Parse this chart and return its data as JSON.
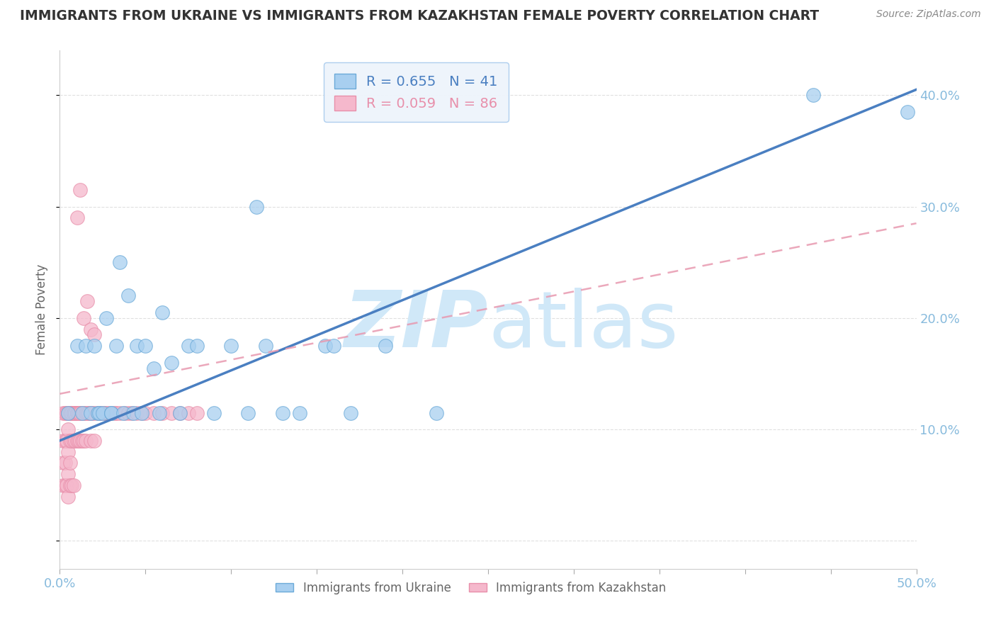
{
  "title": "IMMIGRANTS FROM UKRAINE VS IMMIGRANTS FROM KAZAKHSTAN FEMALE POVERTY CORRELATION CHART",
  "source": "Source: ZipAtlas.com",
  "ylabel": "Female Poverty",
  "yticks": [
    0.0,
    0.1,
    0.2,
    0.3,
    0.4
  ],
  "ytick_labels": [
    "",
    "10.0%",
    "20.0%",
    "30.0%",
    "40.0%"
  ],
  "xlim": [
    0.0,
    0.5
  ],
  "ylim": [
    -0.025,
    0.44
  ],
  "ukraine_R": 0.655,
  "ukraine_N": 41,
  "kazakhstan_R": 0.059,
  "kazakhstan_N": 86,
  "ukraine_color": "#A8CFF0",
  "ukraine_edge_color": "#6BAAD8",
  "kazakhstan_color": "#F5B8CC",
  "kazakhstan_edge_color": "#E88FAA",
  "ukraine_line_color": "#4A7FC1",
  "kazakhstan_line_color": "#E899B0",
  "grid_color": "#DDDDDD",
  "axis_color": "#88BBDD",
  "watermark_color": "#D0E8F8",
  "legend_box_color": "#EEF4FB",
  "ukraine_trend_x0": 0.0,
  "ukraine_trend_y0": 0.09,
  "ukraine_trend_x1": 0.5,
  "ukraine_trend_y1": 0.405,
  "kaz_trend_x0": 0.0,
  "kaz_trend_y0": 0.132,
  "kaz_trend_x1": 0.5,
  "kaz_trend_y1": 0.285,
  "ukraine_scatter_x": [
    0.005,
    0.01,
    0.013,
    0.015,
    0.018,
    0.02,
    0.022,
    0.023,
    0.025,
    0.027,
    0.03,
    0.03,
    0.033,
    0.035,
    0.037,
    0.04,
    0.043,
    0.045,
    0.048,
    0.05,
    0.055,
    0.058,
    0.06,
    0.065,
    0.07,
    0.075,
    0.08,
    0.09,
    0.1,
    0.11,
    0.115,
    0.12,
    0.13,
    0.14,
    0.155,
    0.16,
    0.17,
    0.19,
    0.22,
    0.44,
    0.495
  ],
  "ukraine_scatter_y": [
    0.115,
    0.175,
    0.115,
    0.175,
    0.115,
    0.175,
    0.115,
    0.115,
    0.115,
    0.2,
    0.115,
    0.115,
    0.175,
    0.25,
    0.115,
    0.22,
    0.115,
    0.175,
    0.115,
    0.175,
    0.155,
    0.115,
    0.205,
    0.16,
    0.115,
    0.175,
    0.175,
    0.115,
    0.175,
    0.115,
    0.3,
    0.175,
    0.115,
    0.115,
    0.175,
    0.175,
    0.115,
    0.175,
    0.115,
    0.4,
    0.385
  ],
  "kazakhstan_scatter_x": [
    0.002,
    0.002,
    0.002,
    0.002,
    0.003,
    0.003,
    0.003,
    0.003,
    0.004,
    0.004,
    0.004,
    0.005,
    0.005,
    0.005,
    0.005,
    0.005,
    0.005,
    0.005,
    0.006,
    0.006,
    0.006,
    0.006,
    0.006,
    0.007,
    0.007,
    0.007,
    0.007,
    0.008,
    0.008,
    0.008,
    0.008,
    0.008,
    0.009,
    0.009,
    0.009,
    0.01,
    0.01,
    0.01,
    0.01,
    0.011,
    0.011,
    0.011,
    0.012,
    0.012,
    0.013,
    0.013,
    0.014,
    0.014,
    0.015,
    0.015,
    0.016,
    0.017,
    0.018,
    0.018,
    0.019,
    0.02,
    0.02,
    0.022,
    0.023,
    0.024,
    0.025,
    0.026,
    0.027,
    0.028,
    0.03,
    0.032,
    0.033,
    0.035,
    0.038,
    0.04,
    0.042,
    0.045,
    0.048,
    0.05,
    0.055,
    0.06,
    0.065,
    0.07,
    0.075,
    0.08,
    0.01,
    0.012,
    0.014,
    0.016,
    0.018,
    0.02
  ],
  "kazakhstan_scatter_y": [
    0.115,
    0.09,
    0.07,
    0.05,
    0.115,
    0.09,
    0.07,
    0.05,
    0.115,
    0.09,
    0.05,
    0.115,
    0.115,
    0.115,
    0.1,
    0.08,
    0.06,
    0.04,
    0.115,
    0.115,
    0.09,
    0.07,
    0.05,
    0.115,
    0.115,
    0.09,
    0.05,
    0.115,
    0.115,
    0.115,
    0.09,
    0.05,
    0.115,
    0.115,
    0.09,
    0.115,
    0.115,
    0.115,
    0.09,
    0.115,
    0.115,
    0.09,
    0.115,
    0.09,
    0.115,
    0.09,
    0.115,
    0.09,
    0.115,
    0.09,
    0.115,
    0.115,
    0.115,
    0.09,
    0.115,
    0.115,
    0.09,
    0.115,
    0.115,
    0.115,
    0.115,
    0.115,
    0.115,
    0.115,
    0.115,
    0.115,
    0.115,
    0.115,
    0.115,
    0.115,
    0.115,
    0.115,
    0.115,
    0.115,
    0.115,
    0.115,
    0.115,
    0.115,
    0.115,
    0.115,
    0.29,
    0.315,
    0.2,
    0.215,
    0.19,
    0.185
  ]
}
